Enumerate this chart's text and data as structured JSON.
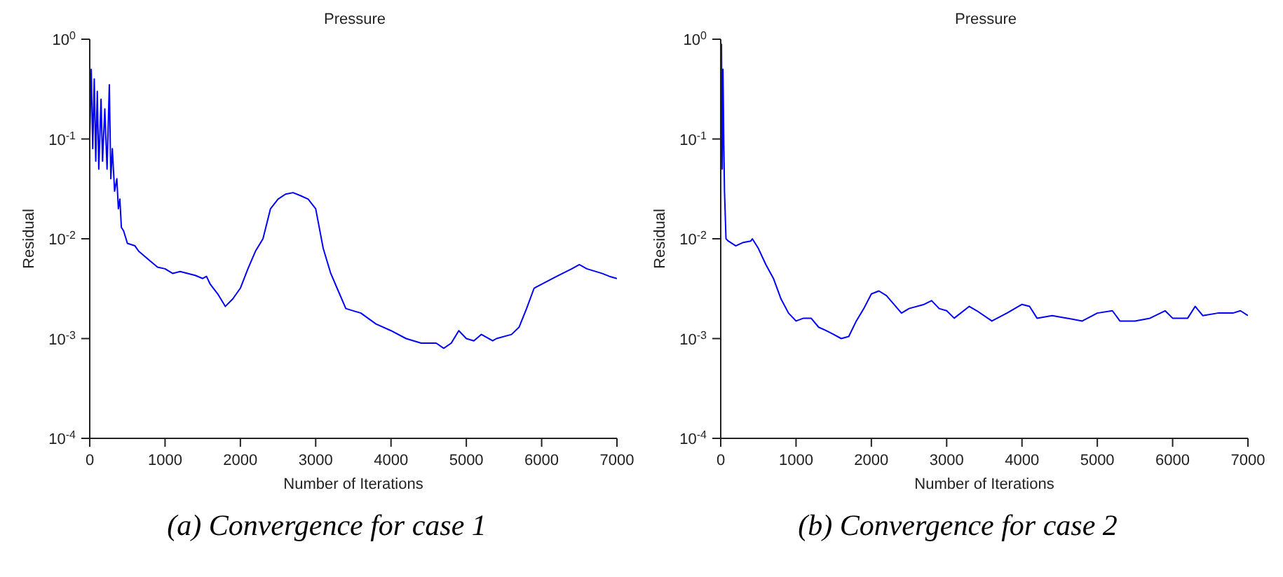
{
  "chart_data": [
    {
      "type": "line",
      "title": "Pressure",
      "xlabel": "Number of Iterations",
      "ylabel": "Residual",
      "log": "y",
      "grid": false,
      "legend": false,
      "marker": "none",
      "line_style": "solid",
      "xlim": [
        0,
        7000
      ],
      "xticks": [
        0,
        1000,
        2000,
        3000,
        4000,
        5000,
        6000,
        7000
      ],
      "ylim": [
        0.0001,
        1
      ],
      "yticks": [
        {
          "value": 0.0001,
          "label": "10$^{-4}$"
        },
        {
          "value": 0.001,
          "label": "10$^{-3}$"
        },
        {
          "value": 0.01,
          "label": "10$^{-2}$"
        },
        {
          "value": 0.1,
          "label": "10$^{-1}$"
        },
        {
          "value": 1,
          "label": "10$^{0}$"
        }
      ],
      "annotations": [
        "(a) Convergence for case 1"
      ],
      "series": [
        {
          "color": "#0000ff",
          "x": [
            0,
            20,
            40,
            60,
            80,
            100,
            120,
            150,
            170,
            200,
            230,
            260,
            280,
            300,
            330,
            360,
            380,
            400,
            420,
            450,
            500,
            600,
            650,
            800,
            900,
            1000,
            1100,
            1200,
            1400,
            1500,
            1550,
            1600,
            1700,
            1800,
            1900,
            2000,
            2100,
            2200,
            2300,
            2400,
            2500,
            2600,
            2700,
            2800,
            2900,
            3000,
            3100,
            3200,
            3300,
            3400,
            3600,
            3800,
            4000,
            4200,
            4400,
            4600,
            4700,
            4800,
            4900,
            5000,
            5100,
            5200,
            5350,
            5400,
            5600,
            5700,
            5800,
            5900,
            6000,
            6200,
            6400,
            6500,
            6600,
            6800,
            6900,
            7000
          ],
          "values": [
            0.1,
            0.5,
            0.08,
            0.4,
            0.06,
            0.3,
            0.05,
            0.25,
            0.06,
            0.2,
            0.05,
            0.35,
            0.04,
            0.08,
            0.03,
            0.04,
            0.02,
            0.025,
            0.013,
            0.012,
            0.009,
            0.0085,
            0.0075,
            0.006,
            0.0052,
            0.005,
            0.0045,
            0.0047,
            0.0043,
            0.004,
            0.0042,
            0.0035,
            0.0028,
            0.0021,
            0.0025,
            0.0032,
            0.005,
            0.0075,
            0.01,
            0.02,
            0.025,
            0.028,
            0.029,
            0.027,
            0.025,
            0.02,
            0.008,
            0.0045,
            0.003,
            0.002,
            0.0018,
            0.0014,
            0.0012,
            0.001,
            0.0009,
            0.0009,
            0.0008,
            0.0009,
            0.0012,
            0.001,
            0.00095,
            0.0011,
            0.00095,
            0.001,
            0.0011,
            0.0013,
            0.002,
            0.0032,
            0.0035,
            0.0042,
            0.005,
            0.0055,
            0.005,
            0.0045,
            0.0042,
            0.004
          ]
        }
      ]
    },
    {
      "type": "line",
      "title": "Pressure",
      "xlabel": "Number of Iterations",
      "ylabel": "Residual",
      "log": "y",
      "grid": false,
      "legend": false,
      "marker": "none",
      "line_style": "solid",
      "xlim": [
        0,
        7000
      ],
      "xticks": [
        0,
        1000,
        2000,
        3000,
        4000,
        5000,
        6000,
        7000
      ],
      "ylim": [
        0.0001,
        1
      ],
      "yticks": [
        {
          "value": 0.0001,
          "label": "10$^{-4}$"
        },
        {
          "value": 0.001,
          "label": "10$^{-3}$"
        },
        {
          "value": 0.01,
          "label": "10$^{-2}$"
        },
        {
          "value": 0.1,
          "label": "10$^{-1}$"
        },
        {
          "value": 1,
          "label": "10$^{0}$"
        }
      ],
      "annotations": [
        "(b) Convergence for case 2"
      ],
      "series": [
        {
          "color": "#0000ff",
          "x": [
            10,
            20,
            30,
            40,
            50,
            70,
            100,
            200,
            300,
            400,
            420,
            500,
            600,
            700,
            800,
            900,
            1000,
            1100,
            1200,
            1300,
            1400,
            1500,
            1600,
            1700,
            1800,
            1900,
            2000,
            2100,
            2200,
            2300,
            2400,
            2500,
            2700,
            2800,
            2900,
            3000,
            3100,
            3300,
            3400,
            3600,
            3800,
            4000,
            4100,
            4200,
            4400,
            4600,
            4800,
            5000,
            5200,
            5300,
            5500,
            5700,
            5900,
            6000,
            6200,
            6300,
            6400,
            6600,
            6800,
            6900,
            7000
          ],
          "values": [
            0.9,
            0.05,
            0.5,
            0.1,
            0.03,
            0.01,
            0.0095,
            0.0085,
            0.0092,
            0.0095,
            0.01,
            0.008,
            0.0055,
            0.004,
            0.0025,
            0.0018,
            0.0015,
            0.0016,
            0.0016,
            0.0013,
            0.0012,
            0.0011,
            0.001,
            0.00105,
            0.0015,
            0.002,
            0.0028,
            0.003,
            0.0027,
            0.0022,
            0.0018,
            0.002,
            0.0022,
            0.0024,
            0.002,
            0.0019,
            0.0016,
            0.0021,
            0.0019,
            0.0015,
            0.0018,
            0.0022,
            0.0021,
            0.0016,
            0.0017,
            0.0016,
            0.0015,
            0.0018,
            0.0019,
            0.0015,
            0.0015,
            0.0016,
            0.0019,
            0.0016,
            0.0016,
            0.0021,
            0.0017,
            0.0018,
            0.0018,
            0.0019,
            0.0017
          ]
        }
      ]
    }
  ]
}
